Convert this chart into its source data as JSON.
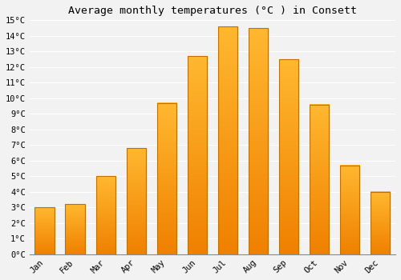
{
  "title": "Average monthly temperatures (°C ) in Consett",
  "months": [
    "Jan",
    "Feb",
    "Mar",
    "Apr",
    "May",
    "Jun",
    "Jul",
    "Aug",
    "Sep",
    "Oct",
    "Nov",
    "Dec"
  ],
  "values": [
    3.0,
    3.2,
    5.0,
    6.8,
    9.7,
    12.7,
    14.6,
    14.5,
    12.5,
    9.6,
    5.7,
    4.0
  ],
  "bar_color_light": "#FFB830",
  "bar_color_dark": "#F08000",
  "bar_edge_color": "#C07000",
  "ylim": [
    0,
    15
  ],
  "yticks": [
    0,
    1,
    2,
    3,
    4,
    5,
    6,
    7,
    8,
    9,
    10,
    11,
    12,
    13,
    14,
    15
  ],
  "background_color": "#F2F2F2",
  "grid_color": "#FFFFFF",
  "title_fontsize": 9.5,
  "tick_fontsize": 7.5,
  "font_family": "monospace"
}
